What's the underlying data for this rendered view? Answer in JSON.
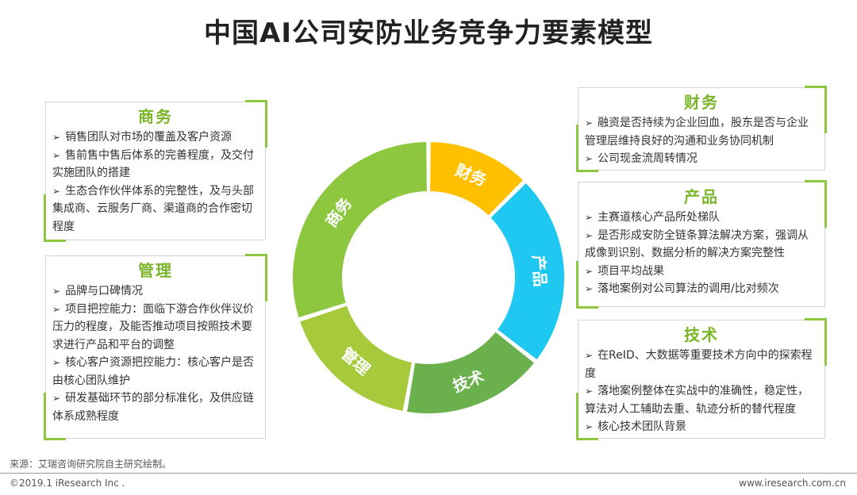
{
  "title": "中国AI公司安防业务竞争力要素模型",
  "colors": {
    "accent_green": "#8dc63f",
    "title_green": "#7ab629",
    "segment_business": "#8dc63f",
    "segment_finance": "#ffc000",
    "segment_product": "#1ec8f0",
    "segment_tech": "#6ab04c",
    "segment_management": "#a6ca3b"
  },
  "cards": {
    "business": {
      "title": "商务",
      "items": [
        "销售团队对市场的覆盖及客户资源",
        "售前售中售后体系的完善程度，及交付实施团队的搭建",
        "生态合作伙伴体系的完整性，及与头部集成商、云服务厂商、渠道商的合作密切程度"
      ]
    },
    "management": {
      "title": "管理",
      "items": [
        "品牌与口碑情况",
        "项目把控能力：面临下游合作伙伴议价压力的程度，及能否推动项目按照技术要求进行产品和平台的调整",
        "核心客户资源把控能力：核心客户是否由核心团队维护",
        "研发基础环节的部分标准化，及供应链体系成熟程度"
      ]
    },
    "finance": {
      "title": "财务",
      "items": [
        "融资是否持续为企业回血，股东是否与企业管理层维持良好的沟通和业务协同机制",
        "公司现金流周转情况"
      ]
    },
    "product": {
      "title": "产品",
      "items": [
        "主赛道核心产品所处梯队",
        "是否形成安防全链条算法解决方案，强调从成像到识别、数据分析的解决方案完整性",
        "项目平均战果",
        "落地案例对公司算法的调用/比对频次"
      ]
    },
    "tech": {
      "title": "技术",
      "items": [
        "在ReID、大数据等重要技术方向中的探索程度",
        "落地案例整体在实战中的准确性，稳定性，算法对人工辅助去重、轨迹分析的替代程度",
        "核心技术团队背景"
      ]
    }
  },
  "donut": {
    "segments": [
      {
        "label": "商务",
        "start_deg": -108,
        "end_deg": 0,
        "color": "#8dc63f"
      },
      {
        "label": "财务",
        "start_deg": 0,
        "end_deg": 45,
        "color": "#ffc000"
      },
      {
        "label": "产品",
        "start_deg": 45,
        "end_deg": 128,
        "color": "#1ec8f0"
      },
      {
        "label": "技术",
        "start_deg": 128,
        "end_deg": 190,
        "color": "#6ab04c"
      },
      {
        "label": "管理",
        "start_deg": 190,
        "end_deg": 252,
        "color": "#a6ca3b"
      }
    ]
  },
  "footer": {
    "source": "来源：艾瑞咨询研究院自主研究绘制。",
    "copyright": "©2019.1 iResearch Inc .",
    "website": "www.iresearch.com.cn"
  }
}
